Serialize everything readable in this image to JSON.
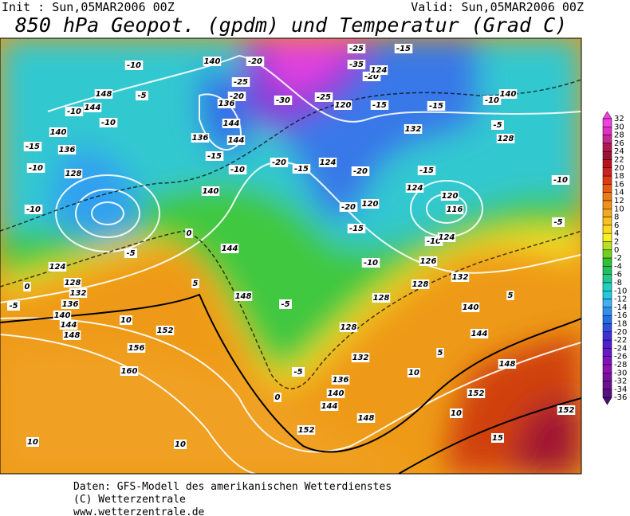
{
  "header": {
    "init": "Init : Sun,05MAR2006 00Z",
    "valid": "Valid: Sun,05MAR2006 00Z",
    "title": "850 hPa Geopot. (gpdm) und Temperatur (Grad C)"
  },
  "contour_labels": [
    "-20",
    "140",
    "-25",
    "-15",
    "-35",
    "-20",
    "124",
    "-10",
    "148",
    "-5",
    "144",
    "-10",
    "-25",
    "-20",
    "-30",
    "136",
    "-25",
    "120",
    "-15",
    "-15",
    "-10",
    "140",
    "-10",
    "140",
    "-15",
    "136",
    "144",
    "144",
    "136",
    "132",
    "-5",
    "128",
    "-10",
    "128",
    "-15",
    "-10",
    "-20",
    "-15",
    "124",
    "-20",
    "-15",
    "-10",
    "124",
    "140",
    "120",
    "-10",
    "116",
    "120",
    "-20",
    "-15",
    "-10",
    "124",
    "-5",
    "0",
    "144",
    "-5",
    "124",
    "-10",
    "126",
    "128",
    "132",
    "136",
    "140",
    "144",
    "148",
    "0",
    "-5",
    "10",
    "5",
    "148",
    "-5",
    "128",
    "132",
    "128",
    "140",
    "144",
    "128",
    "152",
    "156",
    "160",
    "132",
    "-5",
    "136",
    "140",
    "144",
    "148",
    "152",
    "0",
    "10",
    "5",
    "152",
    "148",
    "10",
    "15",
    "152",
    "10",
    "10",
    "5"
  ],
  "colorbar": {
    "levels": [
      32,
      30,
      28,
      26,
      24,
      22,
      20,
      18,
      16,
      14,
      12,
      10,
      8,
      6,
      4,
      2,
      0,
      -2,
      -4,
      -6,
      -8,
      -10,
      -12,
      -14,
      -16,
      -18,
      -20,
      -22,
      -24,
      -26,
      -28,
      -30,
      -32,
      -34,
      -36
    ],
    "colors": [
      "#f040e0",
      "#e030c8",
      "#c82890",
      "#b01850",
      "#a01030",
      "#b81020",
      "#d02020",
      "#e03a10",
      "#e85a10",
      "#ee7a10",
      "#f09018",
      "#f4a820",
      "#f8c020",
      "#fcd818",
      "#f8f020",
      "#b8e020",
      "#70d020",
      "#30c030",
      "#20c060",
      "#20c890",
      "#20d0c0",
      "#20c8e0",
      "#40b0f0",
      "#3090f0",
      "#2070e8",
      "#3050e0",
      "#4030d8",
      "#5020d0",
      "#6818c8",
      "#8010c0",
      "#9010b0",
      "#7a10a0",
      "#6a1090",
      "#5a1080",
      "#4a1070"
    ]
  },
  "footer": [
    "Daten: GFS-Modell des amerikanischen Wetterdienstes",
    "(C) Wetterzentrale",
    "www.wetterzentrale.de"
  ]
}
